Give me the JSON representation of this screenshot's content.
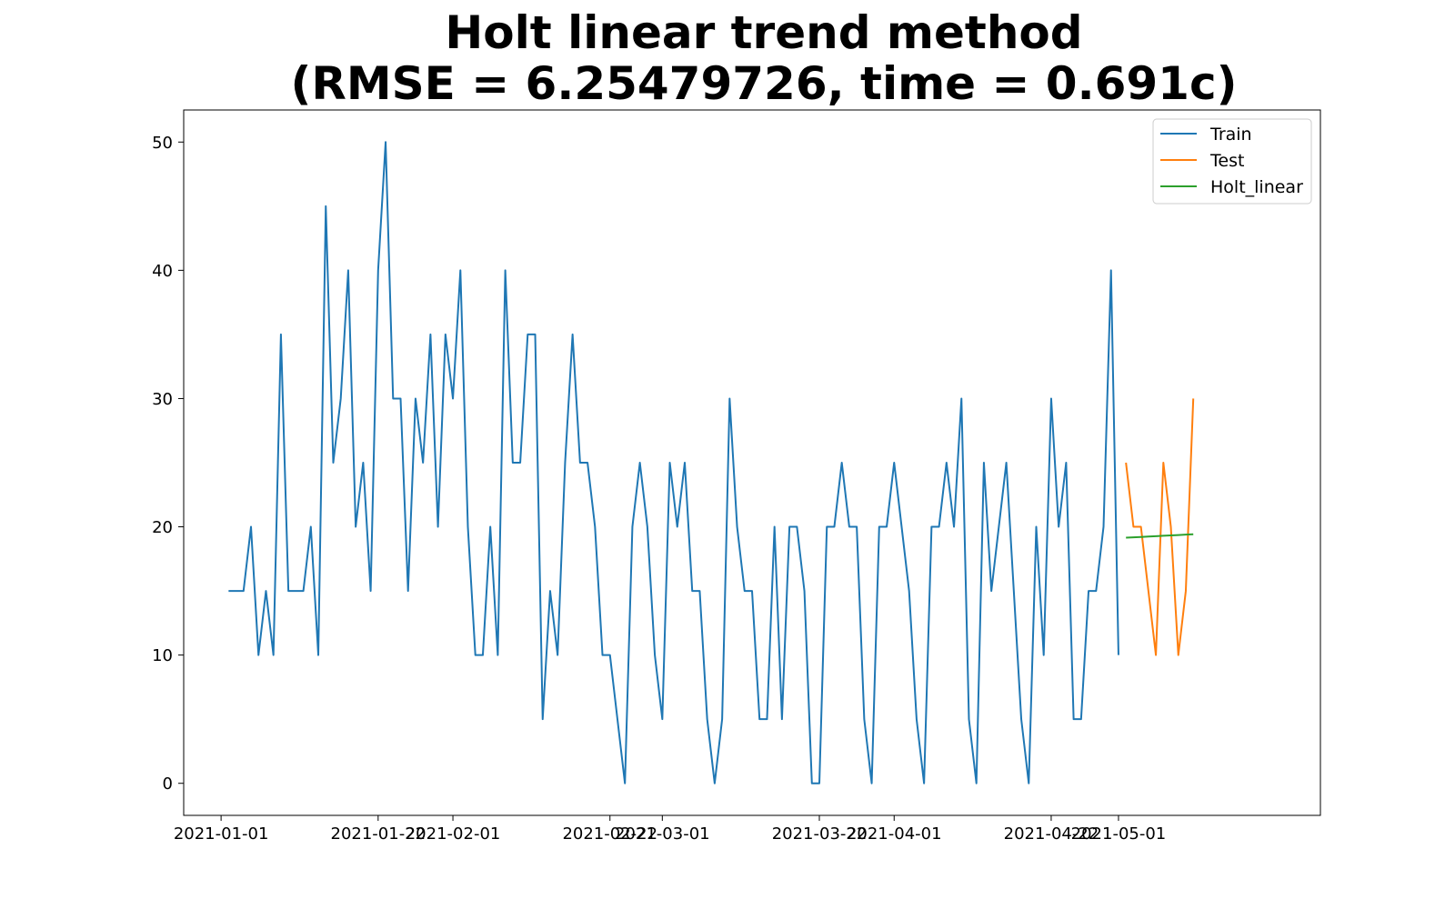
{
  "chart_data": {
    "type": "line",
    "title": "Holt linear trend method",
    "subtitle": "(RMSE = 6.25479726, time = 0.691c)",
    "xlabel": "",
    "ylabel": "",
    "ylim": [
      -2.5,
      52.5
    ],
    "xlim": [
      "2020-12-27",
      "2021-05-28"
    ],
    "grid": false,
    "legend_position": "top-right",
    "x_ticks": [
      "2021-01-01",
      "2021-01-22",
      "2021-02-01",
      "2021-02-22",
      "2021-03-01",
      "2021-03-22",
      "2021-04-01",
      "2021-04-22",
      "2021-05-01"
    ],
    "y_ticks": [
      0,
      10,
      20,
      30,
      40,
      50
    ],
    "series": [
      {
        "name": "Train",
        "color": "#1f77b4",
        "start_date": "2021-01-02",
        "values": [
          15,
          15,
          15,
          20,
          10,
          15,
          10,
          35,
          15,
          15,
          15,
          20,
          10,
          45,
          25,
          30,
          40,
          20,
          25,
          15,
          40,
          50,
          30,
          30,
          15,
          30,
          25,
          35,
          20,
          35,
          30,
          40,
          20,
          10,
          10,
          20,
          10,
          40,
          25,
          25,
          35,
          35,
          5,
          15,
          10,
          25,
          35,
          25,
          25,
          20,
          10,
          10,
          5,
          0,
          20,
          25,
          20,
          10,
          5,
          25,
          20,
          25,
          15,
          15,
          5,
          0,
          5,
          30,
          20,
          15,
          15,
          5,
          5,
          20,
          5,
          20,
          20,
          15,
          0,
          0,
          20,
          20,
          25,
          20,
          20,
          5,
          0,
          20,
          20,
          25,
          20,
          15,
          5,
          0,
          20,
          20,
          25,
          20,
          30,
          5,
          0,
          25,
          15,
          20,
          25,
          15,
          5,
          0,
          20,
          10,
          30,
          20,
          25,
          5,
          5,
          15,
          15,
          20,
          40,
          10
        ]
      },
      {
        "name": "Test",
        "color": "#ff7f0e",
        "start_date": "2021-05-02",
        "values": [
          25,
          20,
          20,
          15,
          10,
          25,
          20,
          10,
          15,
          30
        ]
      },
      {
        "name": "Holt_linear",
        "color": "#2ca02c",
        "start_date": "2021-05-02",
        "values": [
          19.15,
          19.18,
          19.21,
          19.24,
          19.27,
          19.3,
          19.33,
          19.36,
          19.39,
          19.42
        ]
      }
    ]
  }
}
